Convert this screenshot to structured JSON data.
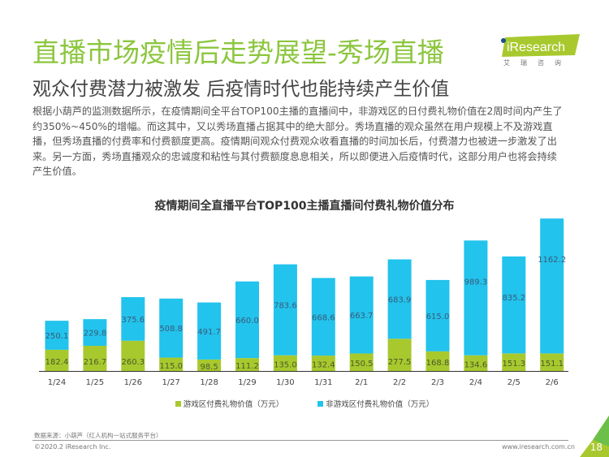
{
  "header": {
    "title": "直播市场疫情后走势展望-秀场直播",
    "subtitle": "观众付费潜力被激发 后疫情时代也能持续产生价值"
  },
  "logo": {
    "text": "iResearch",
    "sub": "艾瑞咨询"
  },
  "body_lines": [
    "根据小葫芦的监测数据所示，在疫情期间全平台TOP100主播的直播间中，非游戏区的日付费礼物价值在2周时间内产生了",
    "约350%~450%的增幅。而这其中，又以秀场直播占据其中的绝大部分。秀场直播的观众虽然在用户规模上不及游戏直",
    "播，但秀场直播的付费率和付费额度更高。疫情期间观众付费观众收看直播的时间加长后，付费潜力也被进一步激发了出",
    "来。另一方面，秀场直播观众的忠诚度和粘性与其付费额度息息相关，所以即便进入后疫情时代，这部分用户也将会持续",
    "产生价值。"
  ],
  "chart_data": {
    "type": "bar",
    "stacked": true,
    "title": "疫情期间全直播平台TOP100主播直播间付费礼物价值分布",
    "categories": [
      "1/24",
      "1/25",
      "1/26",
      "1/27",
      "1/28",
      "1/29",
      "1/30",
      "1/31",
      "2/1",
      "2/2",
      "2/3",
      "2/4",
      "2/5",
      "2/6"
    ],
    "series": [
      {
        "name": "游戏区付费礼物价值（万元）",
        "color": "#a8c92e",
        "values": [
          182.4,
          216.7,
          260.3,
          115.0,
          98.5,
          111.2,
          135.0,
          132.4,
          150.5,
          277.5,
          168.8,
          134.6,
          151.3,
          151.1
        ]
      },
      {
        "name": "非游戏区付费礼物价值（万元）",
        "color": "#22c3ec",
        "values": [
          250.1,
          229.8,
          375.6,
          508.8,
          491.7,
          660.0,
          783.6,
          668.6,
          663.7,
          683.9,
          615.0,
          989.3,
          835.2,
          1162.2
        ]
      }
    ],
    "legend": "bottom",
    "grid": false
  },
  "footer": {
    "source": "数据来源：小葫芦（红人机构一站式服务平台）",
    "copyright": "©2020.2 iResearch Inc.",
    "url": "www.iresearch.com.cn",
    "page": "18"
  }
}
